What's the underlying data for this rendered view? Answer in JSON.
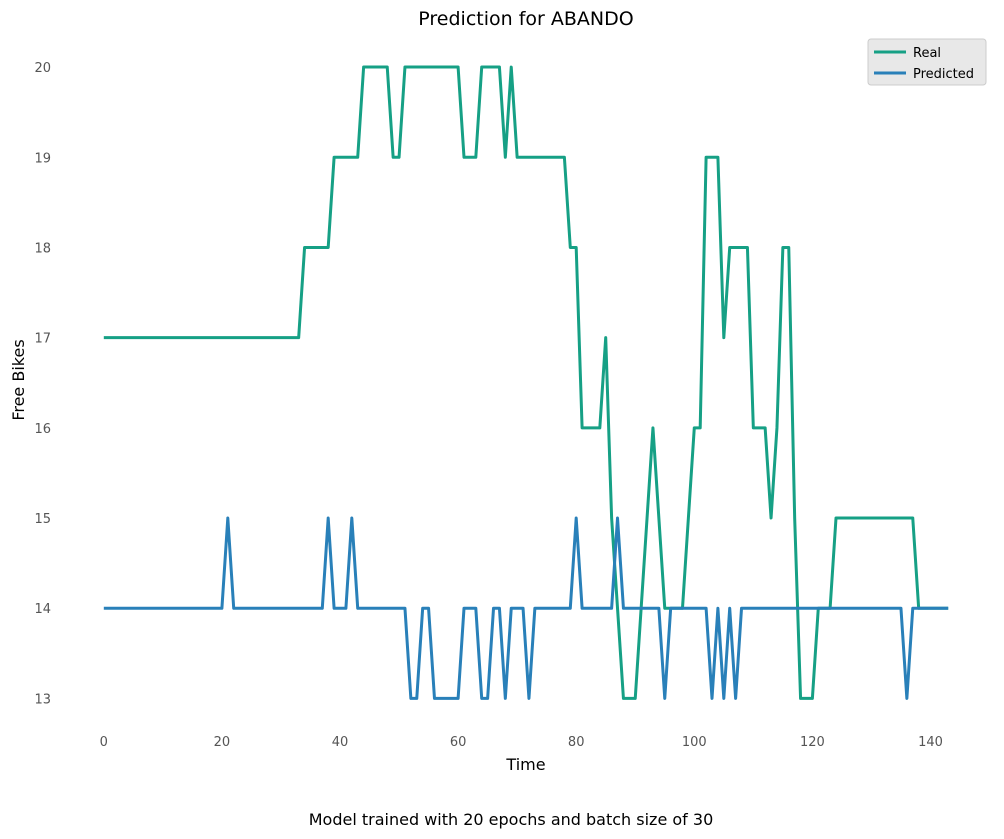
{
  "chart_data": {
    "type": "line",
    "title": "Prediction for ABANDO",
    "xlabel": "Time",
    "ylabel": "Free Bikes",
    "caption": "Model trained with 20 epochs and batch size of 30",
    "xlim": [
      -2,
      145
    ],
    "ylim": [
      12.65,
      20.3
    ],
    "xticks": [
      0,
      20,
      40,
      60,
      80,
      100,
      120,
      140
    ],
    "yticks": [
      13,
      14,
      15,
      16,
      17,
      18,
      19,
      20
    ],
    "grid": false,
    "legend_position": "top-right",
    "x": [
      0,
      1,
      2,
      3,
      4,
      5,
      6,
      7,
      8,
      9,
      10,
      11,
      12,
      13,
      14,
      15,
      16,
      17,
      18,
      19,
      20,
      21,
      22,
      23,
      24,
      25,
      26,
      27,
      28,
      29,
      30,
      31,
      32,
      33,
      34,
      35,
      36,
      37,
      38,
      39,
      40,
      41,
      42,
      43,
      44,
      45,
      46,
      47,
      48,
      49,
      50,
      51,
      52,
      53,
      54,
      55,
      56,
      57,
      58,
      59,
      60,
      61,
      62,
      63,
      64,
      65,
      66,
      67,
      68,
      69,
      70,
      71,
      72,
      73,
      74,
      75,
      76,
      77,
      78,
      79,
      80,
      81,
      82,
      83,
      84,
      85,
      86,
      87,
      88,
      89,
      90,
      91,
      92,
      93,
      94,
      95,
      96,
      97,
      98,
      99,
      100,
      101,
      102,
      103,
      104,
      105,
      106,
      107,
      108,
      109,
      110,
      111,
      112,
      113,
      114,
      115,
      116,
      117,
      118,
      119,
      120,
      121,
      122,
      123,
      124,
      125,
      126,
      127,
      128,
      129,
      130,
      131,
      132,
      133,
      134,
      135,
      136,
      137,
      138,
      139,
      140,
      141,
      142,
      143
    ],
    "series": [
      {
        "name": "Real",
        "color": "#16a085",
        "values": [
          17,
          17,
          17,
          17,
          17,
          17,
          17,
          17,
          17,
          17,
          17,
          17,
          17,
          17,
          17,
          17,
          17,
          17,
          17,
          17,
          17,
          17,
          17,
          17,
          17,
          17,
          17,
          17,
          17,
          17,
          17,
          17,
          17,
          17,
          18,
          18,
          18,
          18,
          18,
          19,
          19,
          19,
          19,
          19,
          20,
          20,
          20,
          20,
          20,
          19,
          19,
          20,
          20,
          20,
          20,
          20,
          20,
          20,
          20,
          20,
          20,
          19,
          19,
          19,
          20,
          20,
          20,
          20,
          19,
          20,
          19,
          19,
          19,
          19,
          19,
          19,
          19,
          19,
          19,
          18,
          18,
          16,
          16,
          16,
          16,
          17,
          15,
          14,
          13,
          13,
          13,
          14,
          15,
          16,
          15,
          14,
          14,
          14,
          14,
          15,
          16,
          16,
          19,
          19,
          19,
          17,
          18,
          18,
          18,
          18,
          16,
          16,
          16,
          15,
          16,
          18,
          18,
          15,
          13,
          13,
          13,
          14,
          14,
          14,
          15,
          15,
          15,
          15,
          15,
          15,
          15,
          15,
          15,
          15,
          15,
          15,
          15,
          15,
          14,
          14,
          14,
          14,
          14,
          14
        ]
      },
      {
        "name": "Predicted",
        "color": "#2980b9",
        "values": [
          14,
          14,
          14,
          14,
          14,
          14,
          14,
          14,
          14,
          14,
          14,
          14,
          14,
          14,
          14,
          14,
          14,
          14,
          14,
          14,
          14,
          15,
          14,
          14,
          14,
          14,
          14,
          14,
          14,
          14,
          14,
          14,
          14,
          14,
          14,
          14,
          14,
          14,
          15,
          14,
          14,
          14,
          15,
          14,
          14,
          14,
          14,
          14,
          14,
          14,
          14,
          14,
          13,
          13,
          14,
          14,
          13,
          13,
          13,
          13,
          13,
          14,
          14,
          14,
          13,
          13,
          14,
          14,
          13,
          14,
          14,
          14,
          13,
          14,
          14,
          14,
          14,
          14,
          14,
          14,
          15,
          14,
          14,
          14,
          14,
          14,
          14,
          15,
          14,
          14,
          14,
          14,
          14,
          14,
          14,
          13,
          14,
          14,
          14,
          14,
          14,
          14,
          14,
          13,
          14,
          13,
          14,
          13,
          14,
          14,
          14,
          14,
          14,
          14,
          14,
          14,
          14,
          14,
          14,
          14,
          14,
          14,
          14,
          14,
          14,
          14,
          14,
          14,
          14,
          14,
          14,
          14,
          14,
          14,
          14,
          14,
          13,
          14,
          14,
          14,
          14,
          14,
          14,
          14
        ]
      }
    ]
  }
}
